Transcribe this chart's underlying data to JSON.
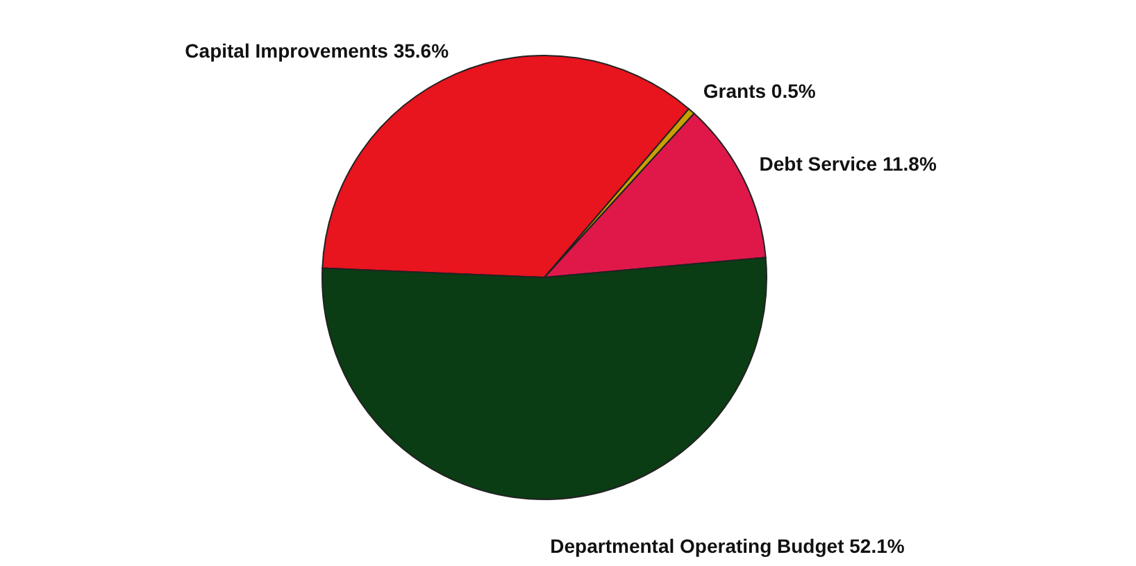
{
  "chart_data": {
    "type": "pie",
    "categories": [
      "Capital Improvements",
      "Grants",
      "Debt Service",
      "Departmental Operating Budget"
    ],
    "values": [
      35.6,
      0.5,
      11.8,
      52.1
    ],
    "value_labels": [
      "35.6%",
      "0.5%",
      "11.8%",
      "52.1%"
    ],
    "colors": [
      "#e8141e",
      "#c8a000",
      "#e0184a",
      "#0a3d14"
    ]
  }
}
